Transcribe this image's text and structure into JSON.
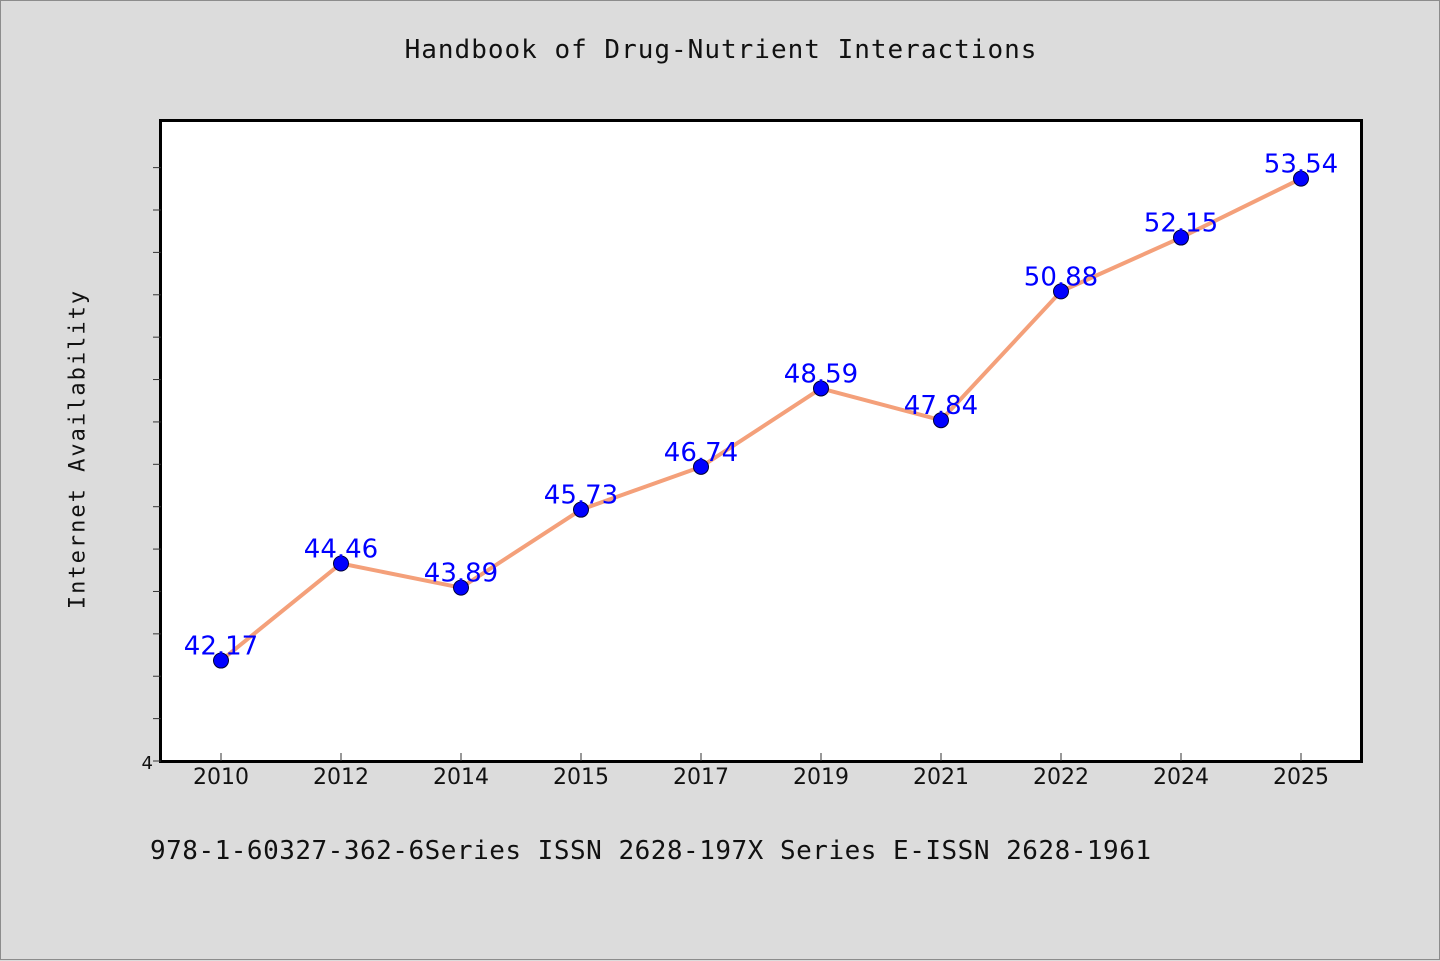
{
  "chart_data": {
    "type": "line",
    "title": "Handbook of Drug-Nutrient Interactions",
    "ylabel": "Internet Availability",
    "xlabel": "",
    "categories": [
      "2010",
      "2012",
      "2014",
      "2015",
      "2017",
      "2019",
      "2021",
      "2022",
      "2024",
      "2025"
    ],
    "series": [
      {
        "values": [
          42.17,
          44.46,
          43.89,
          45.73,
          46.74,
          48.59,
          47.84,
          50.88,
          52.15,
          53.54
        ],
        "labels": [
          "42.17",
          "44.46",
          "43.89",
          "45.73",
          "46.74",
          "48.59",
          "47.84",
          "50.88",
          "52.15",
          "53.54"
        ],
        "line_color": "#f4a07a",
        "marker_color": "#0000ff"
      }
    ],
    "ylim": [
      39.8,
      54.9
    ],
    "y_tick_labels": [
      {
        "value": 39.8,
        "label": "4"
      }
    ],
    "y_minor_ticks": [
      40.8,
      41.8,
      42.8,
      43.8,
      44.8,
      45.8,
      46.8,
      47.8,
      48.8,
      49.8,
      50.8,
      51.8,
      52.8,
      53.8
    ],
    "grid": false,
    "legend": "none"
  },
  "footer": {
    "text": "978-1-60327-362-6Series ISSN 2628-197X Series E-ISSN 2628-1961"
  }
}
